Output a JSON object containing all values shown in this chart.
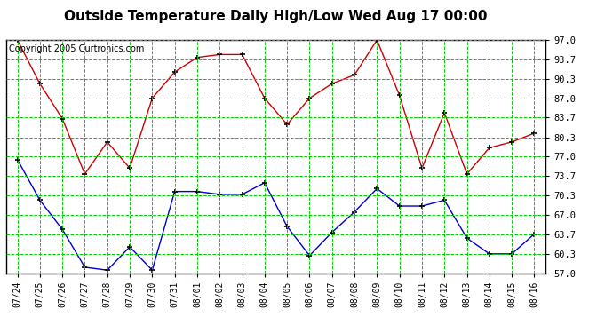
{
  "title": "Outside Temperature Daily High/Low Wed Aug 17 00:00",
  "copyright": "Copyright 2005 Curtronics.com",
  "dates": [
    "07/24",
    "07/25",
    "07/26",
    "07/27",
    "07/28",
    "07/29",
    "07/30",
    "07/31",
    "08/01",
    "08/02",
    "08/03",
    "08/04",
    "08/05",
    "08/06",
    "08/07",
    "08/08",
    "08/09",
    "08/10",
    "08/11",
    "08/12",
    "08/13",
    "08/14",
    "08/15",
    "08/16"
  ],
  "high": [
    97.0,
    89.5,
    83.5,
    74.0,
    79.5,
    75.0,
    87.0,
    91.5,
    94.0,
    94.5,
    94.5,
    87.0,
    82.5,
    87.0,
    89.5,
    91.0,
    97.0,
    87.5,
    75.0,
    84.5,
    74.0,
    78.5,
    79.5,
    81.0
  ],
  "low": [
    76.5,
    69.5,
    64.5,
    58.0,
    57.5,
    61.5,
    57.5,
    71.0,
    71.0,
    70.5,
    70.5,
    72.5,
    65.0,
    60.0,
    64.0,
    67.5,
    71.5,
    68.5,
    68.5,
    69.5,
    63.0,
    60.3,
    60.3,
    63.7
  ],
  "yticks": [
    57.0,
    60.3,
    63.7,
    67.0,
    70.3,
    73.7,
    77.0,
    80.3,
    83.7,
    87.0,
    90.3,
    93.7,
    97.0
  ],
  "ymin": 57.0,
  "ymax": 97.0,
  "high_color": "#cc0000",
  "low_color": "#0000cc",
  "grid_color": "#00cc00",
  "bg_color": "#ffffff",
  "title_fontsize": 11,
  "copyright_fontsize": 7,
  "tick_fontsize": 7,
  "ytick_fontsize": 7.5
}
